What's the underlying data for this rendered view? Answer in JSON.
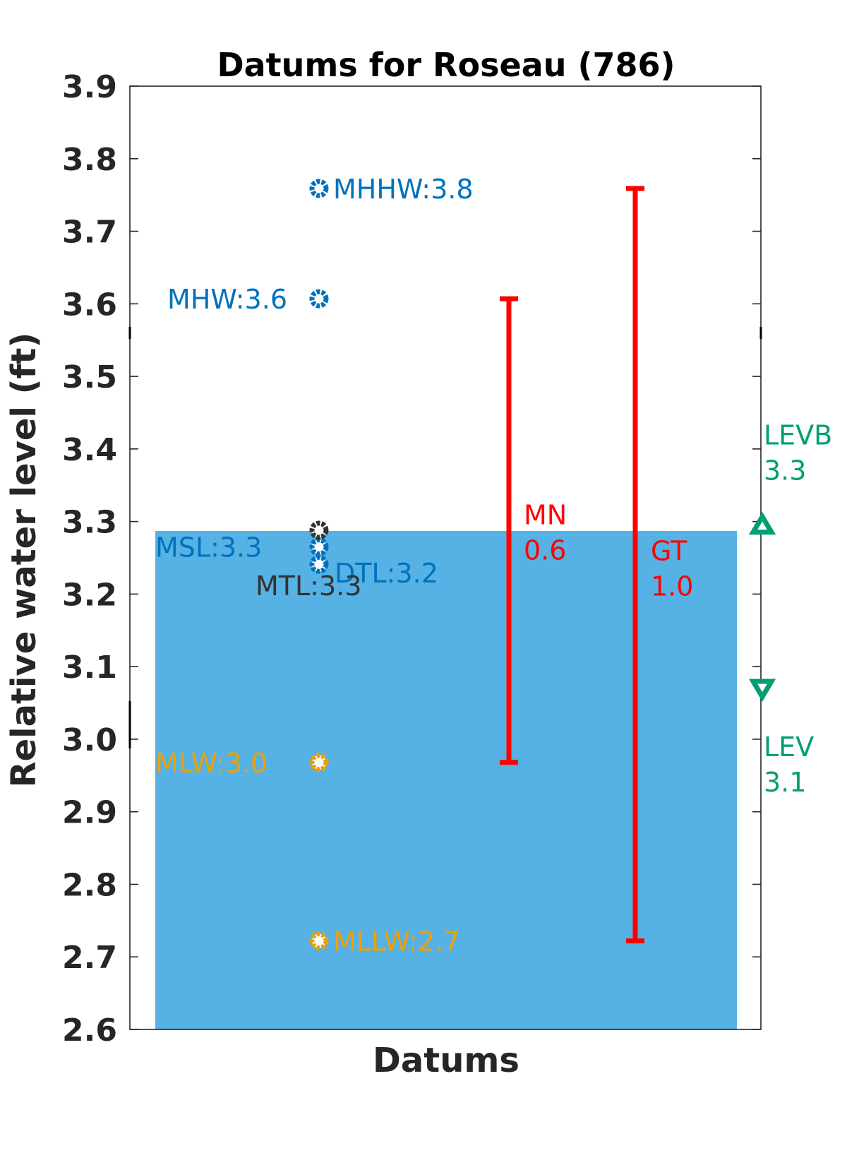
{
  "chart_data": {
    "type": "scatter",
    "title": "Datums for Roseau (786)",
    "xlabel": "Datums",
    "ylabel": "Relative water level (ft)",
    "ylim": [
      2.6,
      3.9
    ],
    "yticks": [
      "3.9",
      "3.8",
      "3.7",
      "3.6",
      "3.5",
      "3.4",
      "3.3",
      "3.2",
      "3.1",
      "3.0",
      "2.9",
      "2.8",
      "2.7",
      "2.6"
    ],
    "colors": {
      "high_water": "#0072BD",
      "low_water": "#EDA100",
      "mtl": "#333333",
      "range": "#FF0000",
      "levels": "#009E73",
      "fill": "#56B1E5",
      "axis": "#262626"
    },
    "fill_band": {
      "from": 2.6,
      "to": 3.287
    },
    "datums": [
      {
        "name": "MHHW",
        "value": 3.759,
        "label": "MHHW:3.8",
        "group": "high_water",
        "label_side": "right"
      },
      {
        "name": "MHW",
        "value": 3.607,
        "label": "MHW:3.6",
        "group": "high_water",
        "label_side": "left"
      },
      {
        "name": "MSL",
        "value": 3.265,
        "label": "MSL:3.3",
        "group": "high_water",
        "label_side": "left"
      },
      {
        "name": "DTL",
        "value": 3.241,
        "label": "DTL:3.2",
        "group": "high_water",
        "label_side": "right"
      },
      {
        "name": "MTL",
        "value": 3.288,
        "label": "MTL:3.3",
        "group": "mtl",
        "label_side": "left"
      },
      {
        "name": "MLW",
        "value": 2.968,
        "label": "MLW:3.0",
        "group": "low_water",
        "label_side": "left"
      },
      {
        "name": "MLLW",
        "value": 2.722,
        "label": "MLLW:2.7",
        "group": "low_water",
        "label_side": "right"
      }
    ],
    "ranges": [
      {
        "name": "MN",
        "low": 2.968,
        "high": 3.607,
        "label_line1": "MN",
        "label_line2": "0.6"
      },
      {
        "name": "GT",
        "low": 2.722,
        "high": 3.759,
        "label_line1": "GT",
        "label_line2": "1.0"
      }
    ],
    "levels": [
      {
        "name": "LEVB",
        "value": 3.295,
        "marker": "triangle-up",
        "label_line1": "LEVB",
        "label_line2": "3.3"
      },
      {
        "name": "LEV",
        "value": 3.07,
        "marker": "triangle-down",
        "label_line1": "LEV",
        "label_line2": "3.1"
      }
    ]
  }
}
